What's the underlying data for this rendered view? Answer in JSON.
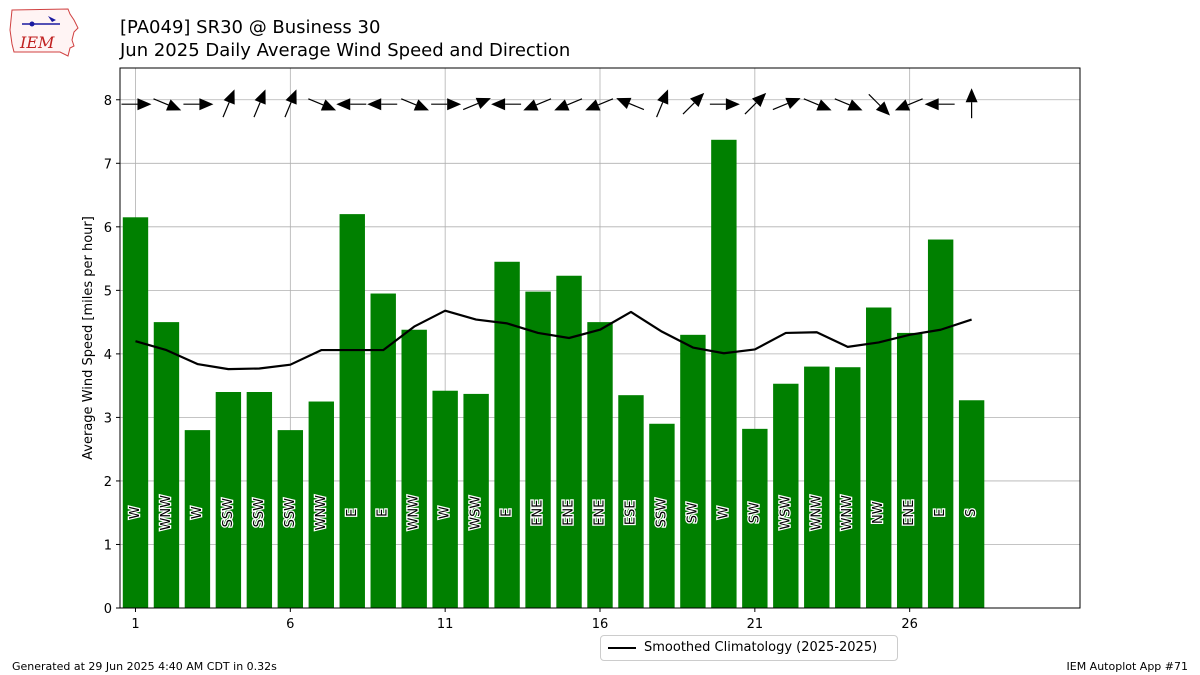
{
  "header": {
    "title": "[PA049] SR30 @ Business 30",
    "subtitle": "Jun 2025 Daily Average Wind Speed and Direction",
    "logo_text": "IEM"
  },
  "footer": {
    "generated": "Generated at 29 Jun 2025 4:40 AM CDT in 0.32s",
    "app": "IEM Autoplot App #71"
  },
  "legend": {
    "label": "Smoothed Climatology (2025-2025)"
  },
  "colors": {
    "bar": "#008000",
    "climatology": "#000000",
    "grid": "#b0b0b0"
  },
  "chart_data": {
    "type": "bar",
    "xlabel": "",
    "ylabel": "Average Wind Speed [miles per hour]",
    "xlim": [
      0.5,
      31.5
    ],
    "ylim": [
      0,
      8.5
    ],
    "xticks": [
      1,
      6,
      11,
      16,
      21,
      26
    ],
    "yticks": [
      0,
      1,
      2,
      3,
      4,
      5,
      6,
      7,
      8
    ],
    "grid": true,
    "legend_position": "bottom-center",
    "days": [
      1,
      2,
      3,
      4,
      5,
      6,
      7,
      8,
      9,
      10,
      11,
      12,
      13,
      14,
      15,
      16,
      17,
      18,
      19,
      20,
      21,
      22,
      23,
      24,
      25,
      26,
      27,
      28
    ],
    "speed": [
      6.15,
      4.5,
      2.8,
      3.4,
      3.4,
      2.8,
      3.25,
      6.2,
      4.95,
      4.38,
      3.42,
      3.37,
      5.45,
      4.98,
      5.23,
      4.5,
      3.35,
      2.9,
      4.3,
      7.37,
      2.82,
      3.53,
      3.8,
      3.79,
      4.73,
      4.33,
      5.8,
      3.27
    ],
    "direction_labels": [
      "W",
      "WNW",
      "W",
      "SSW",
      "SSW",
      "SSW",
      "WNW",
      "E",
      "E",
      "WNW",
      "W",
      "WSW",
      "E",
      "ENE",
      "ENE",
      "ENE",
      "ESE",
      "SSW",
      "SW",
      "W",
      "SW",
      "WSW",
      "WNW",
      "WNW",
      "NW",
      "ENE",
      "E",
      "S"
    ],
    "direction_deg": [
      270,
      292.5,
      270,
      202.5,
      202.5,
      202.5,
      292.5,
      90,
      90,
      292.5,
      270,
      247.5,
      90,
      67.5,
      67.5,
      67.5,
      112.5,
      202.5,
      225,
      270,
      225,
      247.5,
      292.5,
      292.5,
      315,
      67.5,
      90,
      180
    ],
    "climatology": [
      4.2,
      4.06,
      3.84,
      3.76,
      3.77,
      3.83,
      4.06,
      4.06,
      4.06,
      4.43,
      4.68,
      4.54,
      4.48,
      4.33,
      4.25,
      4.38,
      4.66,
      4.35,
      4.1,
      4.01,
      4.07,
      4.33,
      4.34,
      4.11,
      4.18,
      4.3,
      4.38,
      4.54
    ]
  }
}
